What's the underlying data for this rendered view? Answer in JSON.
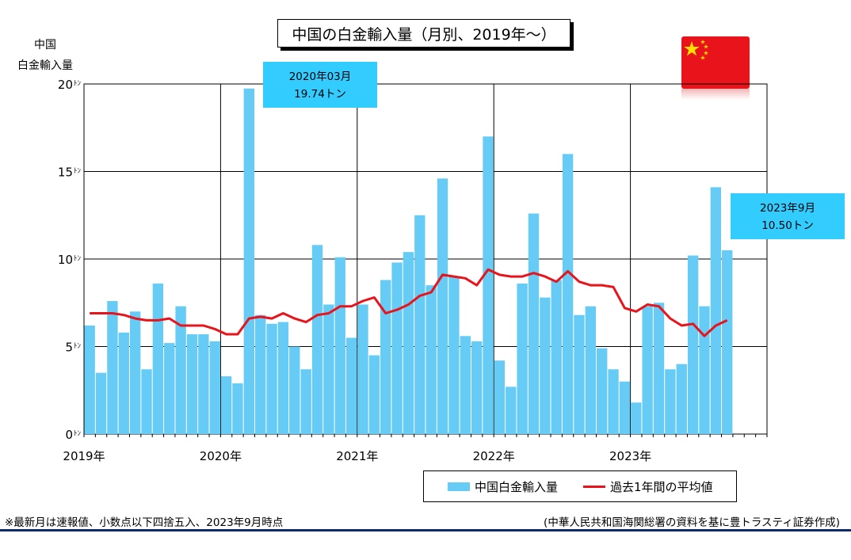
{
  "y_axis_label_line1": "中国",
  "y_axis_label_line2": "白金輸入量",
  "callout_peak": {
    "line1": "2020年03月",
    "line2": "19.74トン"
  },
  "callout_latest": {
    "line1": "2023年9月",
    "line2": "10.50トン"
  },
  "legend": {
    "bar_label": "中国白金輸入量",
    "line_label": "過去1年間の平均値"
  },
  "footnote_left": "※最新月は速報値、小数点以下四捨五入、2023年9月時点",
  "footnote_right": "(中華人民共和国海関総署の資料を基に豊トラスティ証券作成)",
  "colors": {
    "bar": "#66ccf5",
    "line": "#e8131b",
    "callout": "#33ccff",
    "flag": "#e8131b",
    "flag_star": "#ffde00"
  },
  "chart_data": {
    "type": "bar",
    "title": "中国の白金輸入量（月別、2019年～）",
    "ylabel": "中国 白金輸入量",
    "ylim": [
      0,
      20
    ],
    "yticks": [
      0,
      5,
      10,
      15,
      20
    ],
    "ytick_labels": [
      "0",
      "5",
      "10",
      "15",
      "20"
    ],
    "ytick_unit": "ﾄﾝ",
    "xtick_labels": [
      "2019年",
      "2020年",
      "2021年",
      "2022年",
      "2023年"
    ],
    "grid": true,
    "categories": [
      "2019-01",
      "2019-02",
      "2019-03",
      "2019-04",
      "2019-05",
      "2019-06",
      "2019-07",
      "2019-08",
      "2019-09",
      "2019-10",
      "2019-11",
      "2019-12",
      "2020-01",
      "2020-02",
      "2020-03",
      "2020-04",
      "2020-05",
      "2020-06",
      "2020-07",
      "2020-08",
      "2020-09",
      "2020-10",
      "2020-11",
      "2020-12",
      "2021-01",
      "2021-02",
      "2021-03",
      "2021-04",
      "2021-05",
      "2021-06",
      "2021-07",
      "2021-08",
      "2021-09",
      "2021-10",
      "2021-11",
      "2021-12",
      "2022-01",
      "2022-02",
      "2022-03",
      "2022-04",
      "2022-05",
      "2022-06",
      "2022-07",
      "2022-08",
      "2022-09",
      "2022-10",
      "2022-11",
      "2022-12",
      "2023-01",
      "2023-02",
      "2023-03",
      "2023-04",
      "2023-05",
      "2023-06",
      "2023-07",
      "2023-08",
      "2023-09"
    ],
    "series": [
      {
        "name": "中国白金輸入量",
        "type": "bar",
        "values": [
          6.2,
          3.5,
          7.6,
          5.8,
          7.0,
          3.7,
          8.6,
          5.2,
          7.3,
          5.7,
          5.7,
          5.3,
          3.3,
          2.9,
          19.74,
          6.8,
          6.3,
          6.4,
          5.0,
          3.7,
          10.8,
          7.4,
          10.1,
          5.5,
          7.4,
          4.5,
          8.8,
          9.8,
          10.4,
          12.5,
          8.5,
          14.6,
          9.0,
          5.6,
          5.3,
          17.0,
          4.2,
          2.7,
          8.6,
          12.6,
          7.8,
          8.8,
          16.0,
          6.8,
          7.3,
          4.9,
          3.7,
          3.0,
          1.8,
          7.3,
          7.5,
          3.7,
          4.0,
          10.2,
          7.3,
          14.1,
          10.5
        ]
      },
      {
        "name": "過去1年間の平均値",
        "type": "line",
        "values": [
          6.9,
          6.9,
          6.9,
          6.8,
          6.6,
          6.5,
          6.5,
          6.6,
          6.2,
          6.2,
          6.2,
          6.0,
          5.7,
          5.7,
          6.6,
          6.7,
          6.6,
          6.9,
          6.6,
          6.4,
          6.8,
          6.9,
          7.3,
          7.3,
          7.6,
          7.8,
          6.9,
          7.1,
          7.4,
          7.9,
          8.1,
          9.1,
          9.0,
          8.9,
          8.5,
          9.4,
          9.1,
          9.0,
          9.0,
          9.2,
          9.0,
          8.7,
          9.3,
          8.7,
          8.5,
          8.5,
          8.4,
          7.2,
          7.0,
          7.4,
          7.3,
          6.6,
          6.2,
          6.3,
          5.6,
          6.2,
          6.5
        ]
      }
    ]
  }
}
